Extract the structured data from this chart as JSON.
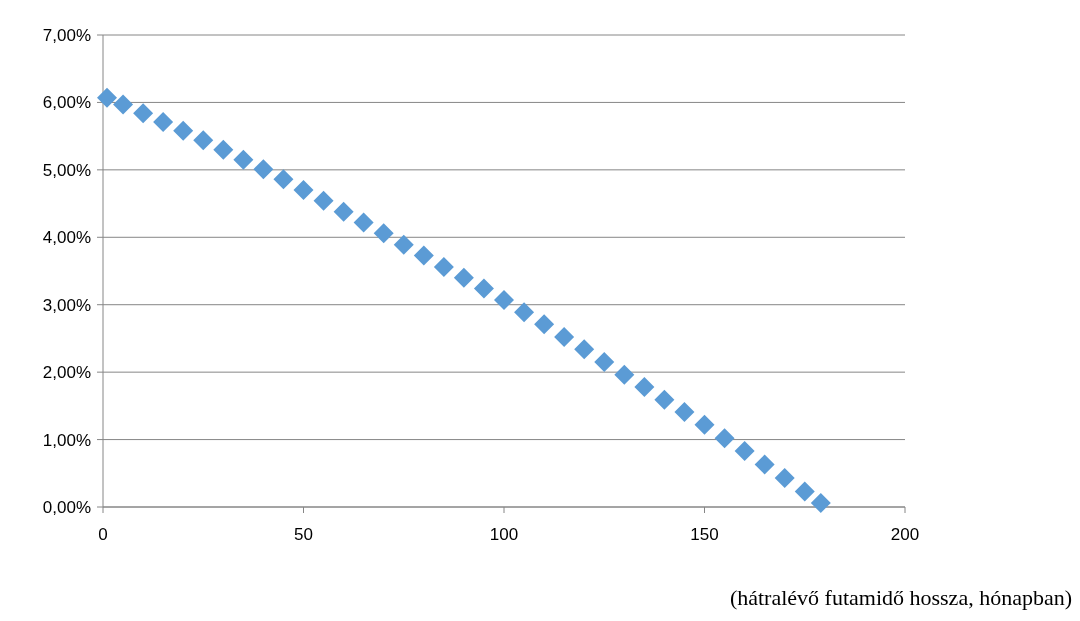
{
  "chart_data": {
    "type": "scatter",
    "xlabel": "(hátralévő futamidő hossza, hónapban)",
    "marker": "diamond",
    "grid": "y",
    "xlim": [
      0,
      200
    ],
    "xticks": [
      0,
      50,
      100,
      150,
      200
    ],
    "ylim": [
      0,
      7
    ],
    "yticks": [
      {
        "value": 0,
        "label": "0,00%"
      },
      {
        "value": 1,
        "label": "1,00%"
      },
      {
        "value": 2,
        "label": "2,00%"
      },
      {
        "value": 3,
        "label": "3,00%"
      },
      {
        "value": 4,
        "label": "4,00%"
      },
      {
        "value": 5,
        "label": "5,00%"
      },
      {
        "value": 6,
        "label": "6,00%"
      },
      {
        "value": 7,
        "label": "7,00%"
      }
    ],
    "series": [
      {
        "color": "#5b9bd5",
        "x": [
          1,
          5,
          10,
          15,
          20,
          25,
          30,
          35,
          40,
          45,
          50,
          55,
          60,
          65,
          70,
          75,
          80,
          85,
          90,
          95,
          100,
          105,
          110,
          115,
          120,
          125,
          130,
          135,
          140,
          145,
          150,
          155,
          160,
          165,
          170,
          175,
          179
        ],
        "values": [
          6.07,
          5.97,
          5.84,
          5.71,
          5.58,
          5.44,
          5.3,
          5.15,
          5.01,
          4.86,
          4.7,
          4.54,
          4.38,
          4.22,
          4.06,
          3.89,
          3.73,
          3.56,
          3.4,
          3.24,
          3.07,
          2.89,
          2.71,
          2.52,
          2.34,
          2.15,
          1.96,
          1.78,
          1.59,
          1.41,
          1.22,
          1.02,
          0.83,
          0.63,
          0.43,
          0.23,
          0.06
        ]
      }
    ]
  }
}
